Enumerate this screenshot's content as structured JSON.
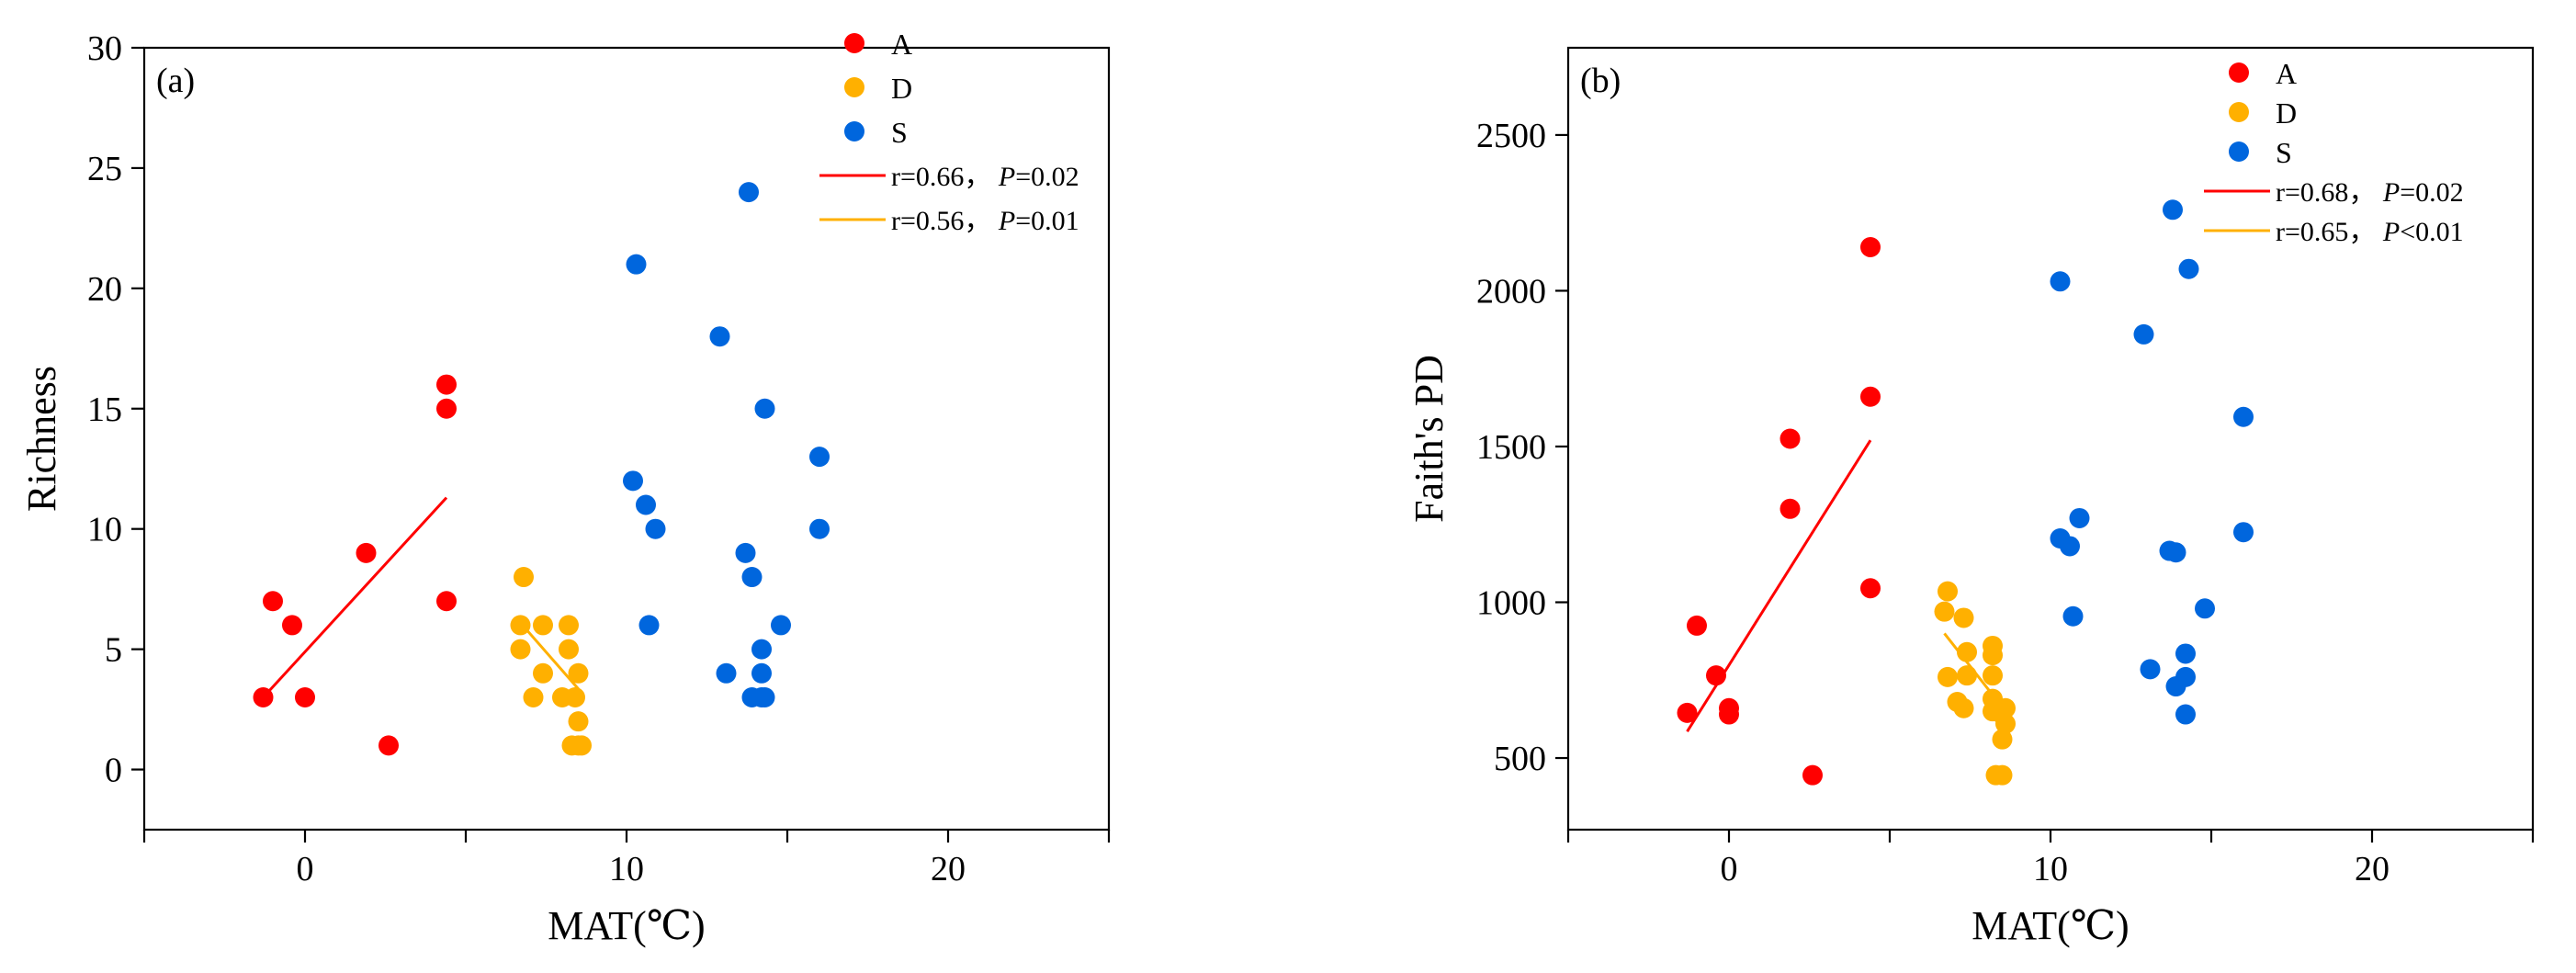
{
  "chart_data": [
    {
      "type": "scatter",
      "panel_label": "(a)",
      "xlabel": "MAT(℃)",
      "ylabel": "Richness",
      "xlim": [
        -5,
        25
      ],
      "ylim": [
        -2.5,
        30
      ],
      "xticks": [
        -5,
        0,
        5,
        10,
        15,
        20,
        25
      ],
      "xtick_labels": [
        "",
        "0",
        "",
        "10",
        "",
        "20",
        ""
      ],
      "yticks": [
        0,
        5,
        10,
        15,
        20,
        25,
        30
      ],
      "ytick_labels": [
        "0",
        "5",
        "10",
        "15",
        "20",
        "25",
        "30"
      ],
      "legend_position": "top-right",
      "series": [
        {
          "name": "A",
          "color": "#ff0000",
          "points": [
            [
              -1.3,
              3
            ],
            [
              -1.0,
              7
            ],
            [
              -0.4,
              6
            ],
            [
              0,
              3
            ],
            [
              1.9,
              9
            ],
            [
              2.6,
              1
            ],
            [
              4.4,
              16
            ],
            [
              4.4,
              15
            ],
            [
              4.4,
              7
            ]
          ]
        },
        {
          "name": "D",
          "color": "#ffb000",
          "points": [
            [
              6.7,
              6
            ],
            [
              6.7,
              5
            ],
            [
              6.8,
              8
            ],
            [
              7.1,
              3
            ],
            [
              7.4,
              6
            ],
            [
              7.4,
              4
            ],
            [
              8.0,
              3
            ],
            [
              8.2,
              6
            ],
            [
              8.2,
              5
            ],
            [
              8.3,
              1
            ],
            [
              8.4,
              3
            ],
            [
              8.5,
              1
            ],
            [
              8.5,
              4
            ],
            [
              8.5,
              2
            ],
            [
              8.6,
              1
            ]
          ]
        },
        {
          "name": "S",
          "color": "#0066dd",
          "points": [
            [
              10.2,
              12
            ],
            [
              10.3,
              21
            ],
            [
              10.6,
              11
            ],
            [
              10.7,
              6
            ],
            [
              10.9,
              10
            ],
            [
              12.9,
              18
            ],
            [
              13.1,
              4
            ],
            [
              13.7,
              9
            ],
            [
              13.8,
              24
            ],
            [
              13.9,
              8
            ],
            [
              13.9,
              3
            ],
            [
              14.2,
              5
            ],
            [
              14.2,
              3
            ],
            [
              14.2,
              4
            ],
            [
              14.3,
              3
            ],
            [
              14.3,
              15
            ],
            [
              14.8,
              6
            ],
            [
              16.0,
              13
            ],
            [
              16.0,
              10
            ]
          ]
        }
      ],
      "fits": [
        {
          "name": "r=0.66， P=0.02",
          "r_label": "r=0.66，",
          "p_label": "P",
          "p_value": "=0.02",
          "color": "#ff0000",
          "x": [
            -1.3,
            4.4
          ],
          "y": [
            3.0,
            11.3
          ]
        },
        {
          "name": "r=0.56， P=0.01",
          "r_label": "r=0.56，",
          "p_label": "P",
          "p_value": "=0.01",
          "color": "#ffb000",
          "x": [
            6.7,
            8.6
          ],
          "y": [
            6.1,
            3.2
          ]
        }
      ]
    },
    {
      "type": "scatter",
      "panel_label": "(b)",
      "xlabel": "MAT(℃)",
      "ylabel": "Faith's PD",
      "xlim": [
        -5,
        25
      ],
      "ylim": [
        270,
        2780
      ],
      "xticks": [
        -5,
        0,
        5,
        10,
        15,
        20,
        25
      ],
      "xtick_labels": [
        "",
        "0",
        "",
        "10",
        "",
        "20",
        ""
      ],
      "yticks": [
        500,
        1000,
        1500,
        2000,
        2500
      ],
      "ytick_labels": [
        "500",
        "1000",
        "1500",
        "2000",
        "2500"
      ],
      "legend_position": "top-right",
      "series": [
        {
          "name": "A",
          "color": "#ff0000",
          "points": [
            [
              -1.3,
              645
            ],
            [
              -1.0,
              925
            ],
            [
              -0.4,
              765
            ],
            [
              0,
              660
            ],
            [
              0,
              640
            ],
            [
              1.9,
              1525
            ],
            [
              1.9,
              1300
            ],
            [
              2.6,
              445
            ],
            [
              4.4,
              2140
            ],
            [
              4.4,
              1660
            ],
            [
              4.4,
              1045
            ]
          ]
        },
        {
          "name": "D",
          "color": "#ffb000",
          "points": [
            [
              6.7,
              970
            ],
            [
              6.8,
              1035
            ],
            [
              6.8,
              760
            ],
            [
              7.1,
              680
            ],
            [
              7.3,
              950
            ],
            [
              7.3,
              660
            ],
            [
              7.4,
              840
            ],
            [
              7.4,
              765
            ],
            [
              8.2,
              860
            ],
            [
              8.2,
              830
            ],
            [
              8.2,
              765
            ],
            [
              8.2,
              690
            ],
            [
              8.2,
              650
            ],
            [
              8.3,
              445
            ],
            [
              8.5,
              640
            ],
            [
              8.5,
              560
            ],
            [
              8.5,
              445
            ],
            [
              8.6,
              660
            ],
            [
              8.6,
              610
            ]
          ]
        },
        {
          "name": "S",
          "color": "#0066dd",
          "points": [
            [
              10.3,
              2030
            ],
            [
              10.3,
              1205
            ],
            [
              10.6,
              1180
            ],
            [
              10.7,
              955
            ],
            [
              10.9,
              1270
            ],
            [
              12.9,
              1860
            ],
            [
              13.1,
              785
            ],
            [
              13.7,
              1165
            ],
            [
              13.8,
              2260
            ],
            [
              13.9,
              1160
            ],
            [
              13.9,
              730
            ],
            [
              14.2,
              835
            ],
            [
              14.2,
              760
            ],
            [
              14.2,
              640
            ],
            [
              14.3,
              2070
            ],
            [
              14.8,
              980
            ],
            [
              16.0,
              1595
            ],
            [
              16.0,
              1225
            ]
          ]
        }
      ],
      "fits": [
        {
          "name": "r=0.68， P=0.02",
          "r_label": "r=0.68，",
          "p_label": "P",
          "p_value": "=0.02",
          "color": "#ff0000",
          "x": [
            -1.3,
            4.4
          ],
          "y": [
            585,
            1520
          ]
        },
        {
          "name": "r=0.65， P<0.01",
          "r_label": "r=0.65，",
          "p_label": "P",
          "p_value": "<0.01",
          "color": "#ffb000",
          "x": [
            6.7,
            8.6
          ],
          "y": [
            900,
            650
          ]
        }
      ]
    }
  ]
}
